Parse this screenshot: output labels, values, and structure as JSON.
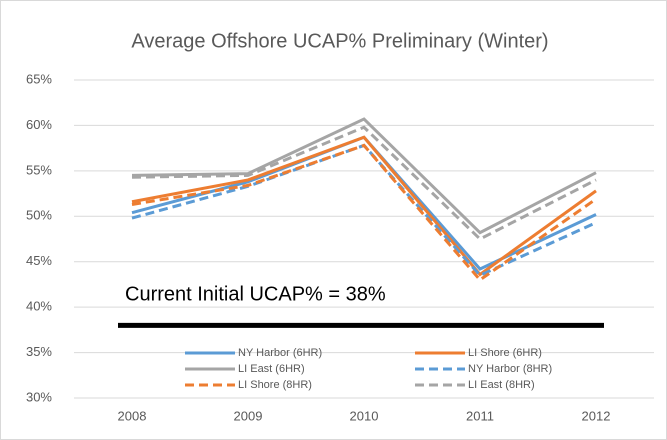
{
  "chart_data": {
    "type": "line",
    "title": "Average Offshore UCAP% Preliminary (Winter)",
    "categories": [
      "2008",
      "2009",
      "2010",
      "2011",
      "2012"
    ],
    "series": [
      {
        "name": "NY Harbor (6HR)",
        "color": "#5b9bd5",
        "dash": false,
        "values": [
          50.4,
          53.8,
          58.7,
          44.2,
          50.2
        ]
      },
      {
        "name": "LI Shore (6HR)",
        "color": "#ed7d31",
        "dash": false,
        "values": [
          51.6,
          54.0,
          58.7,
          43.6,
          52.8
        ]
      },
      {
        "name": "LI East (6HR)",
        "color": "#a5a5a5",
        "dash": false,
        "values": [
          54.5,
          54.7,
          60.7,
          48.2,
          54.8
        ]
      },
      {
        "name": "NY Harbor (8HR)",
        "color": "#5b9bd5",
        "dash": true,
        "values": [
          49.8,
          53.3,
          57.8,
          43.5,
          49.3
        ]
      },
      {
        "name": "LI Shore (8HR)",
        "color": "#ed7d31",
        "dash": true,
        "values": [
          51.3,
          53.4,
          57.8,
          43.0,
          51.9
        ]
      },
      {
        "name": "LI East (8HR)",
        "color": "#a5a5a5",
        "dash": true,
        "values": [
          54.3,
          54.5,
          59.8,
          47.5,
          54.0
        ]
      }
    ],
    "ylim": [
      30,
      65
    ],
    "yticks": [
      {
        "value": 30,
        "label": "30%"
      },
      {
        "value": 35,
        "label": "35%"
      },
      {
        "value": 40,
        "label": "40%"
      },
      {
        "value": 45,
        "label": "45%"
      },
      {
        "value": 50,
        "label": "50%"
      },
      {
        "value": 55,
        "label": "55%"
      },
      {
        "value": 60,
        "label": "60%"
      },
      {
        "value": 65,
        "label": "65%"
      }
    ],
    "grid": true,
    "reference_line": 38,
    "annotation": "Current Initial UCAP% = 38%"
  }
}
